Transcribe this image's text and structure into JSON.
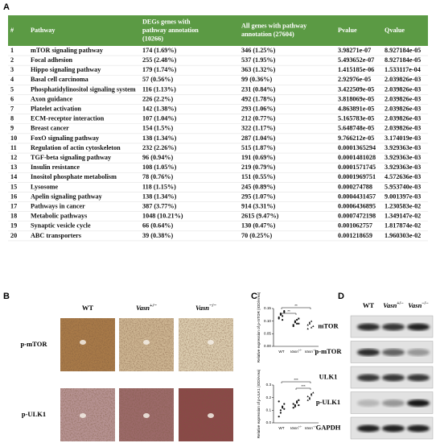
{
  "panels": {
    "a": "A",
    "b": "B",
    "c": "C",
    "d": "D"
  },
  "table": {
    "highlight_color": "#e8202a",
    "header": [
      [
        "#"
      ],
      [
        "Pathway"
      ],
      [
        "DEGs genes with",
        "pathway annotation",
        "(10266)"
      ],
      [
        "All genes with pathway",
        "annotation (27604)"
      ],
      [
        "Pvalue"
      ],
      [
        "Qvalue"
      ]
    ],
    "rows": [
      [
        "1",
        "mTOR signaling pathway",
        "174 (1.69%)",
        "346 (1.25%)",
        "3.98271e-07",
        "8.927184e-05"
      ],
      [
        "2",
        "Focal adhesion",
        "255 (2.48%)",
        "537 (1.95%)",
        "5.493652e-07",
        "8.927184e-05"
      ],
      [
        "3",
        "Hippo signaling pathway",
        "179 (1.74%)",
        "363 (1.32%)",
        "1.415185e-06",
        "1.533117e-04"
      ],
      [
        "4",
        "Basal cell carcinoma",
        "57 (0.56%)",
        "99 (0.36%)",
        "2.92976e-05",
        "2.039826e-03"
      ],
      [
        "5",
        "Phosphatidylinositol signaling system",
        "116 (1.13%)",
        "231 (0.84%)",
        "3.422509e-05",
        "2.039826e-03"
      ],
      [
        "6",
        "Axon guidance",
        "226 (2.2%)",
        "492 (1.78%)",
        "3.818069e-05",
        "2.039826e-03"
      ],
      [
        "7",
        "Platelet activation",
        "142 (1.38%)",
        "293 (1.06%)",
        "4.863891e-05",
        "2.039826e-03"
      ],
      [
        "8",
        "ECM-receptor interaction",
        "107 (1.04%)",
        "212 (0.77%)",
        "5.165783e-05",
        "2.039826e-03"
      ],
      [
        "9",
        "Breast cancer",
        "154 (1.5%)",
        "322 (1.17%)",
        "5.648748e-05",
        "2.039826e-03"
      ],
      [
        "10",
        "FoxO signaling pathway",
        "138 (1.34%)",
        "287 (1.04%)",
        "9.766212e-05",
        "3.174019e-03"
      ],
      [
        "11",
        "Regulation of actin cytoskeleton",
        "232 (2.26%)",
        "515 (1.87%)",
        "0.0001365294",
        "3.929363e-03"
      ],
      [
        "12",
        "TGF-beta signaling pathway",
        "96 (0.94%)",
        "191 (0.69%)",
        "0.0001481028",
        "3.929363e-03"
      ],
      [
        "13",
        "Insulin resistance",
        "108 (1.05%)",
        "219 (0.79%)",
        "0.0001571745",
        "3.929363e-03"
      ],
      [
        "14",
        "Inositol phosphate metabolism",
        "78 (0.76%)",
        "151 (0.55%)",
        "0.0001969751",
        "4.572636e-03"
      ],
      [
        "15",
        "Lysosome",
        "118 (1.15%)",
        "245 (0.89%)",
        "0.000274788",
        "5.953740e-03"
      ],
      [
        "16",
        "Apelin signaling pathway",
        "138 (1.34%)",
        "295 (1.07%)",
        "0.0004431457",
        "9.001397e-03"
      ],
      [
        "17",
        "Pathways in cancer",
        "387 (3.77%)",
        "914 (3.31%)",
        "0.0006436895",
        "1.230583e-02"
      ],
      [
        "18",
        "Metabolic pathways",
        "1048 (10.21%)",
        "2615 (9.47%)",
        "0.0007472198",
        "1.349147e-02"
      ],
      [
        "19",
        "Synaptic vesicle cycle",
        "66 (0.64%)",
        "130 (0.47%)",
        "0.001062757",
        "1.817874e-02"
      ],
      [
        "20",
        "ABC transporters",
        "39 (0.38%)",
        "70 (0.25%)",
        "0.001218659",
        "1.960303e-02"
      ]
    ]
  },
  "groups": [
    {
      "text": "WT"
    },
    {
      "gene": "Vasn",
      "sup": "+/−"
    },
    {
      "gene": "Vasn",
      "sup": "−/−"
    }
  ],
  "ihc": {
    "rows": [
      "p-mTOR",
      "p-ULK1"
    ]
  },
  "scatter": {
    "plots": [
      {
        "ylabel": "Relative expression of p-mTOR (IOD/Area)",
        "ylim": [
          0,
          0.15
        ],
        "yticks": [
          {
            "value": 0,
            "label": "0.00"
          },
          {
            "value": 0.05,
            "label": "0.05"
          },
          {
            "value": 0.1,
            "label": "0.10"
          },
          {
            "value": 0.15,
            "label": "0.15"
          }
        ],
        "points": [
          [
            0.11,
            0.13,
            0.12,
            0.14,
            0.115,
            0.125,
            0.105,
            0.135
          ],
          [
            0.08,
            0.1,
            0.09,
            0.11,
            0.085,
            0.095,
            0.105,
            0.09
          ],
          [
            0.07,
            0.09,
            0.1,
            0.08,
            0.085,
            0.095,
            0.075
          ]
        ],
        "sig": [
          "**",
          "**"
        ]
      },
      {
        "ylabel": "Relative expression of p-ULK1 (IOD/Area)",
        "ylim": [
          0,
          0.3
        ],
        "yticks": [
          {
            "value": 0,
            "label": "0.0"
          },
          {
            "value": 0.1,
            "label": "0.1"
          },
          {
            "value": 0.2,
            "label": "0.2"
          },
          {
            "value": 0.3,
            "label": "0.3"
          }
        ],
        "points": [
          [
            0.05,
            0.1,
            0.12,
            0.15,
            0.17,
            0.08,
            0.13,
            0.11
          ],
          [
            0.12,
            0.14,
            0.16,
            0.18,
            0.15,
            0.13,
            0.17,
            0.14
          ],
          [
            0.18,
            0.2,
            0.22,
            0.24,
            0.21,
            0.19,
            0.23
          ]
        ],
        "sig": [
          "***",
          "***"
        ]
      }
    ]
  },
  "blot": {
    "rows": [
      "mTOR",
      "p-mTOR",
      "ULK1",
      "p-ULK1",
      "GAPDH"
    ]
  }
}
